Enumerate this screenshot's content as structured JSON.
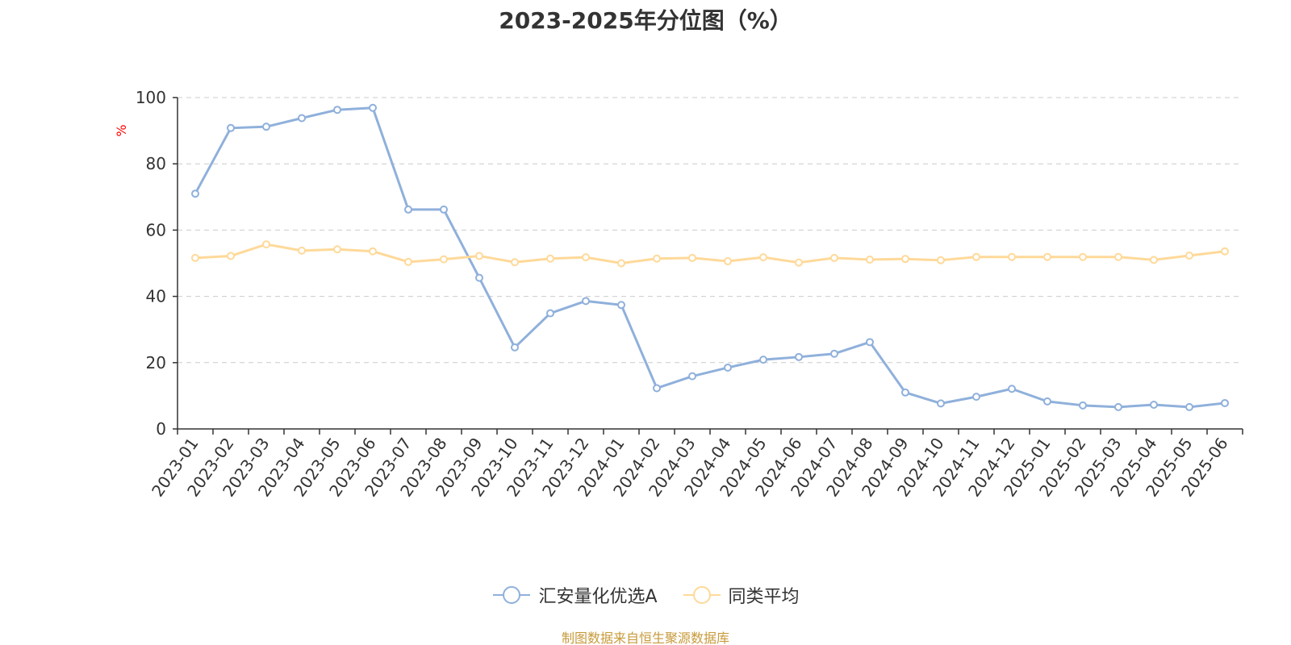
{
  "chart_data": {
    "type": "line",
    "title": "2023-2025年分位图（%）",
    "ylabel": "%",
    "ylim": [
      0,
      100
    ],
    "yticks": [
      0,
      20,
      40,
      60,
      80,
      100
    ],
    "grid": true,
    "legend_position": "bottom",
    "categories": [
      "2023-01",
      "2023-02",
      "2023-03",
      "2023-04",
      "2023-05",
      "2023-06",
      "2023-07",
      "2023-08",
      "2023-09",
      "2023-10",
      "2023-11",
      "2023-12",
      "2024-01",
      "2024-02",
      "2024-03",
      "2024-04",
      "2024-05",
      "2024-06",
      "2024-07",
      "2024-08",
      "2024-09",
      "2024-10",
      "2024-11",
      "2024-12",
      "2025-01",
      "2025-02",
      "2025-03",
      "2025-04",
      "2025-05",
      "2025-06"
    ],
    "series": [
      {
        "name": "汇安量化优选A",
        "color": "#8fb0db",
        "values": [
          71.0,
          90.8,
          91.2,
          93.8,
          96.3,
          96.9,
          66.2,
          66.2,
          45.6,
          24.6,
          34.9,
          38.6,
          37.4,
          12.3,
          15.9,
          18.5,
          20.9,
          21.7,
          22.7,
          26.2,
          11.0,
          7.7,
          9.7,
          12.1,
          8.3,
          7.1,
          6.6,
          7.3,
          6.6,
          7.8
        ]
      },
      {
        "name": "同类平均",
        "color": "#ffd999",
        "values": [
          51.6,
          52.2,
          55.7,
          53.8,
          54.2,
          53.6,
          50.4,
          51.2,
          52.2,
          50.3,
          51.4,
          51.8,
          50.0,
          51.4,
          51.6,
          50.6,
          51.8,
          50.2,
          51.6,
          51.1,
          51.3,
          50.9,
          51.9,
          51.9,
          51.9,
          51.9,
          51.9,
          51.0,
          52.3,
          53.6
        ]
      }
    ],
    "source_note": "制图数据来自恒生聚源数据库"
  },
  "colors": {
    "title": "#333333",
    "axis": "#333333",
    "grid": "#cccccc",
    "ylabel": "#ff0000",
    "source": "#c79a3a"
  }
}
